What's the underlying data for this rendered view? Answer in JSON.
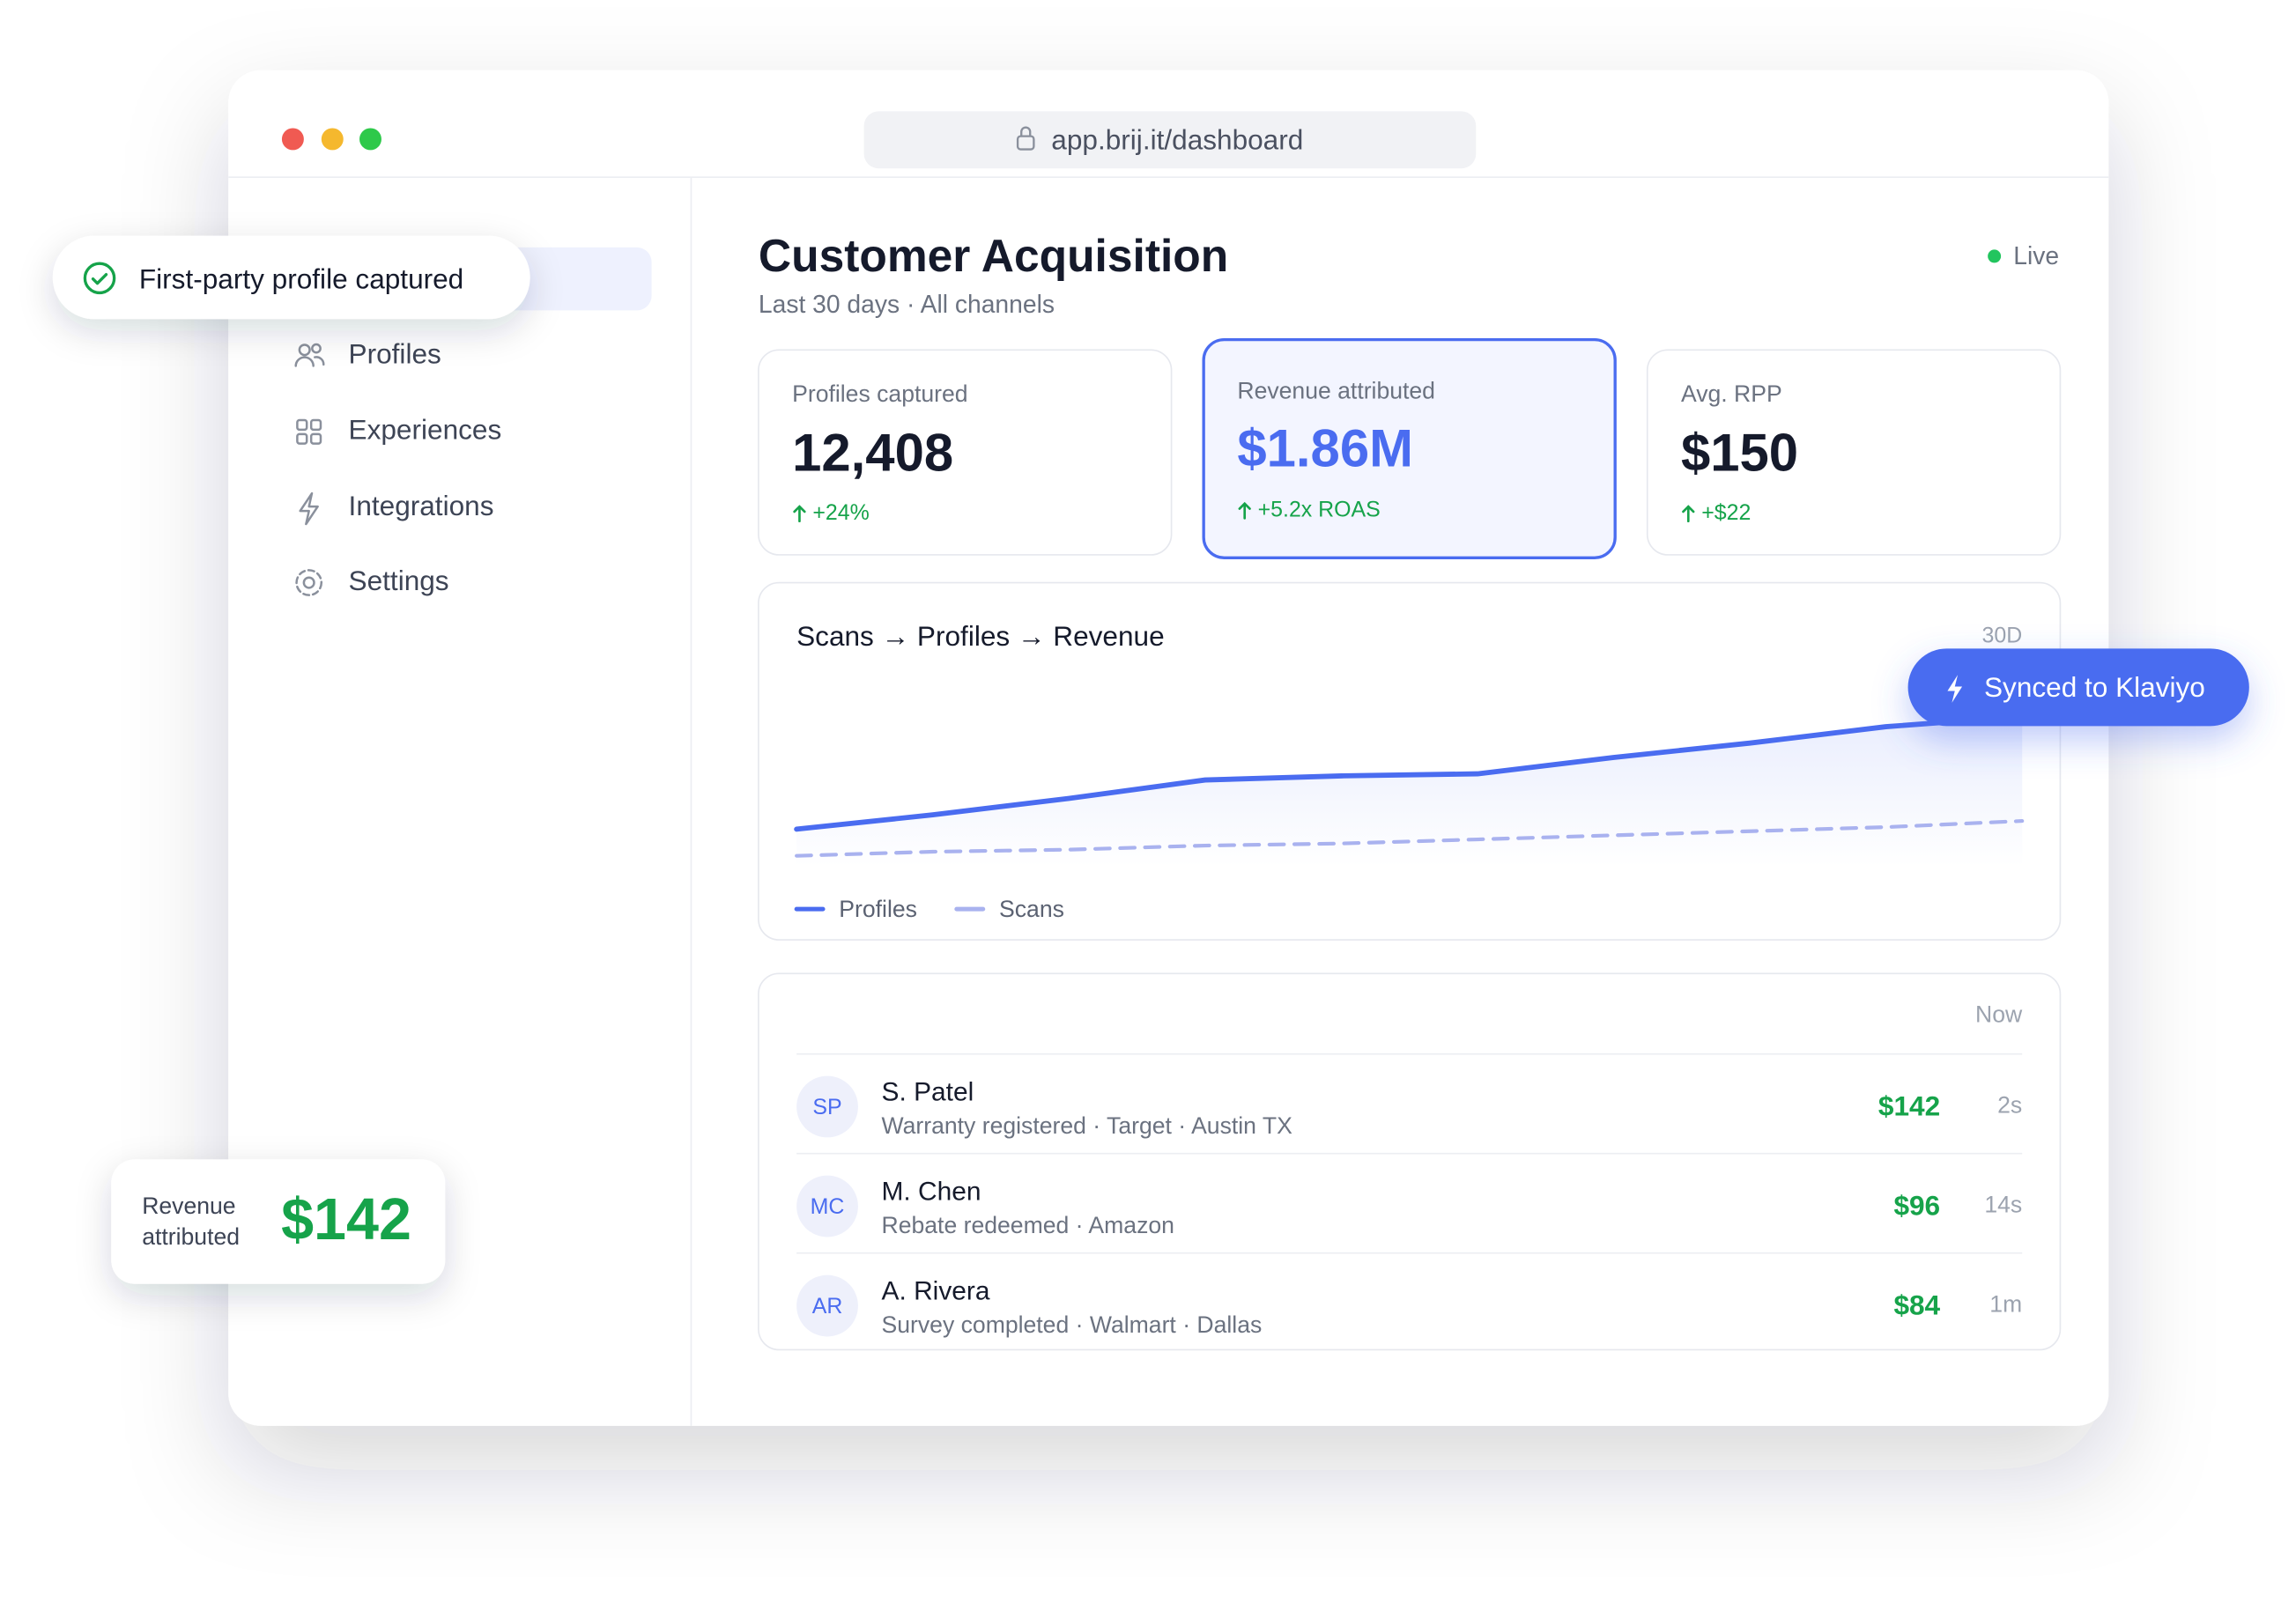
{
  "browser": {
    "url": "app.brij.it/dashboard"
  },
  "sidebar": {
    "items": [
      "Profiles",
      "Experiences",
      "Integrations",
      "Settings"
    ]
  },
  "header": {
    "title": "Customer Acquisition",
    "subtitle": "Last 30 days · All channels",
    "status": "Live"
  },
  "kpis": [
    {
      "label": "Profiles captured",
      "value": "12,408",
      "delta": "+24%"
    },
    {
      "label": "Revenue attributed",
      "value": "$1.86M",
      "delta": "+5.2x ROAS"
    },
    {
      "label": "Avg. RPP",
      "value": "$150",
      "delta": "+$22"
    }
  ],
  "chart_data": {
    "type": "line",
    "title": "Scans → Profiles → Revenue",
    "range_label": "30D",
    "ylim": [
      0,
      100
    ],
    "series": [
      {
        "name": "Profiles",
        "color": "#4a6cf0",
        "dashed": false,
        "values": [
          24,
          31,
          39,
          48,
          50,
          51,
          59,
          66,
          74,
          79
        ]
      },
      {
        "name": "Scans",
        "color": "#a9b2ef",
        "dashed": true,
        "values": [
          11,
          13,
          14,
          16,
          17,
          19,
          21,
          23,
          25,
          28
        ]
      }
    ]
  },
  "activity": {
    "label": "Now",
    "rows": [
      {
        "initials": "SP",
        "name": "S. Patel",
        "detail": "Warranty registered · Target · Austin TX",
        "amount": "$142",
        "time": "2s"
      },
      {
        "initials": "MC",
        "name": "M. Chen",
        "detail": "Rebate redeemed · Amazon",
        "amount": "$96",
        "time": "14s"
      },
      {
        "initials": "AR",
        "name": "A. Rivera",
        "detail": "Survey completed · Walmart · Dallas",
        "amount": "$84",
        "time": "1m"
      }
    ]
  },
  "toasts": {
    "profile": "First-party profile captured",
    "klaviyo": "Synced to Klaviyo",
    "revenue_label": [
      "Revenue",
      "attributed"
    ],
    "revenue_value": "$142"
  }
}
